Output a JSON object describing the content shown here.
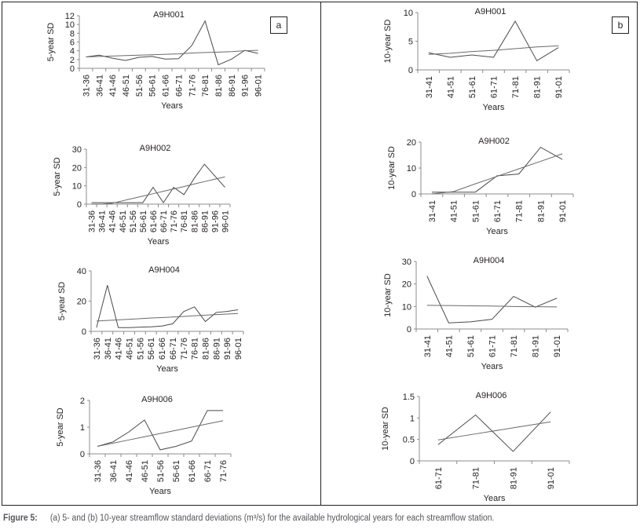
{
  "panels": [
    {
      "id": "a",
      "label": "a"
    },
    {
      "id": "b",
      "label": "b"
    }
  ],
  "caption": {
    "figure_label": "Figure 5:",
    "text": "(a) 5- and (b) 10-year streamflow standard deviations (m³/s) for the available hydrological years for each streamflow station."
  },
  "chart_data": [
    {
      "panel": "a",
      "type": "line",
      "title": "A9H001",
      "xlabel": "Years",
      "ylabel": "5-year SD",
      "ylim": [
        0,
        12
      ],
      "yticks": [
        0,
        2,
        4,
        6,
        8,
        10,
        12
      ],
      "categories": [
        "31-36",
        "36-41",
        "41-46",
        "46-51",
        "51-56",
        "56-61",
        "61-66",
        "66-71",
        "71-76",
        "76-81",
        "81-86",
        "86-91",
        "91-96",
        "96-01"
      ],
      "series": [
        {
          "name": "SD",
          "values": [
            2.6,
            3.0,
            2.3,
            1.8,
            2.5,
            2.7,
            2.1,
            2.2,
            5.2,
            10.8,
            0.8,
            2.1,
            4.1,
            3.4
          ]
        },
        {
          "name": "Trend",
          "values": [
            2.6,
            2.7,
            2.8,
            2.9,
            3.0,
            3.1,
            3.2,
            3.3,
            3.5,
            3.6,
            3.7,
            3.8,
            4.0,
            4.1
          ]
        }
      ]
    },
    {
      "panel": "a",
      "type": "line",
      "title": "A9H002",
      "xlabel": "Years",
      "ylabel": "5-year SD",
      "ylim": [
        0,
        30
      ],
      "yticks": [
        0,
        10,
        20,
        30
      ],
      "categories": [
        "31-36",
        "36-41",
        "41-46",
        "46-51",
        "51-56",
        "56-61",
        "61-66",
        "66-71",
        "71-76",
        "76-81",
        "81-86",
        "86-91",
        "91-96",
        "96-01"
      ],
      "series": [
        {
          "name": "SD",
          "values": [
            0.8,
            0.8,
            0.8,
            0.8,
            0.8,
            0.8,
            9.2,
            0.8,
            9.2,
            5.2,
            14.0,
            21.8,
            15.5,
            9.2
          ]
        },
        {
          "name": "Trend",
          "values": [
            -1.5,
            -0.3,
            0.5,
            1.8,
            3.1,
            4.4,
            5.7,
            7.0,
            8.3,
            9.6,
            11.0,
            12.3,
            13.6,
            14.9
          ]
        }
      ]
    },
    {
      "panel": "a",
      "type": "line",
      "title": "A9H004",
      "xlabel": "Years",
      "ylabel": "5-year SD",
      "ylim": [
        0,
        40
      ],
      "yticks": [
        0,
        20,
        40
      ],
      "categories": [
        "31-36",
        "36-41",
        "41-46",
        "46-51",
        "51-56",
        "56-61",
        "61-66",
        "66-71",
        "71-76",
        "76-81",
        "81-86",
        "86-91",
        "91-96",
        "96-01"
      ],
      "series": [
        {
          "name": "SD",
          "values": [
            2.5,
            30.5,
            2.5,
            2.5,
            2.8,
            3.0,
            3.5,
            5.0,
            13.0,
            16.2,
            6.5,
            12.5,
            13.2,
            14.3
          ]
        },
        {
          "name": "Trend",
          "values": [
            6.8,
            7.2,
            7.6,
            8.0,
            8.4,
            8.8,
            9.1,
            9.5,
            9.9,
            10.3,
            10.7,
            11.1,
            11.4,
            11.8
          ]
        }
      ]
    },
    {
      "panel": "a",
      "type": "line",
      "title": "A9H006",
      "xlabel": "Years",
      "ylabel": "5-year SD",
      "ylim": [
        0,
        2
      ],
      "yticks": [
        0,
        1,
        2
      ],
      "categories": [
        "31-36",
        "36-41",
        "41-46",
        "46-51",
        "51-56",
        "56-61",
        "61-66",
        "66-71",
        "71-76"
      ],
      "series": [
        {
          "name": "SD",
          "values": [
            0.28,
            0.45,
            0.82,
            1.27,
            0.15,
            0.28,
            0.48,
            1.62,
            1.62
          ]
        },
        {
          "name": "Trend",
          "values": [
            0.28,
            0.4,
            0.52,
            0.64,
            0.76,
            0.88,
            1.0,
            1.12,
            1.24
          ]
        }
      ]
    },
    {
      "panel": "b",
      "type": "line",
      "title": "A9H001",
      "xlabel": "Years",
      "ylabel": "10-year SD",
      "ylim": [
        0,
        10
      ],
      "yticks": [
        0,
        5,
        10
      ],
      "categories": [
        "31-41",
        "41-51",
        "51-61",
        "61-71",
        "71-81",
        "81-91",
        "91-01"
      ],
      "series": [
        {
          "name": "SD",
          "values": [
            3.0,
            2.2,
            2.6,
            2.2,
            8.5,
            1.6,
            3.9
          ]
        },
        {
          "name": "Trend",
          "values": [
            2.7,
            2.9,
            3.2,
            3.4,
            3.7,
            4.0,
            4.2
          ]
        }
      ]
    },
    {
      "panel": "b",
      "type": "line",
      "title": "A9H002",
      "xlabel": "Years",
      "ylabel": "10-year SD",
      "ylim": [
        0,
        20
      ],
      "yticks": [
        0,
        10,
        20
      ],
      "categories": [
        "31-41",
        "41-51",
        "51-61",
        "61-71",
        "71-81",
        "81-91",
        "91-01"
      ],
      "series": [
        {
          "name": "SD",
          "values": [
            0.7,
            0.7,
            0.7,
            7.0,
            7.7,
            18.0,
            13.3
          ]
        },
        {
          "name": "Trend",
          "values": [
            -2.0,
            0.9,
            3.9,
            6.8,
            9.7,
            12.6,
            15.5
          ]
        }
      ]
    },
    {
      "panel": "b",
      "type": "line",
      "title": "A9H004",
      "xlabel": "Years",
      "ylabel": "10-year SD",
      "ylim": [
        0,
        30
      ],
      "yticks": [
        0,
        10,
        20,
        30
      ],
      "categories": [
        "31-41",
        "41-51",
        "51-61",
        "61-71",
        "71-81",
        "81-91",
        "91-01"
      ],
      "series": [
        {
          "name": "SD",
          "values": [
            23.5,
            2.7,
            3.2,
            4.3,
            14.5,
            9.7,
            13.7
          ]
        },
        {
          "name": "Trend",
          "values": [
            10.5,
            10.4,
            10.3,
            10.2,
            10.0,
            9.9,
            9.8
          ]
        }
      ]
    },
    {
      "panel": "b",
      "type": "line",
      "title": "A9H006",
      "xlabel": "Years",
      "ylabel": "10-year SD",
      "ylim": [
        0,
        1.5
      ],
      "yticks": [
        0,
        0.5,
        1,
        1.5
      ],
      "categories": [
        "61-71",
        "71-81",
        "81-91",
        "91-01"
      ],
      "series": [
        {
          "name": "SD",
          "values": [
            0.38,
            1.07,
            0.22,
            1.14
          ]
        },
        {
          "name": "Trend",
          "values": [
            0.49,
            0.63,
            0.77,
            0.91
          ]
        }
      ]
    }
  ]
}
